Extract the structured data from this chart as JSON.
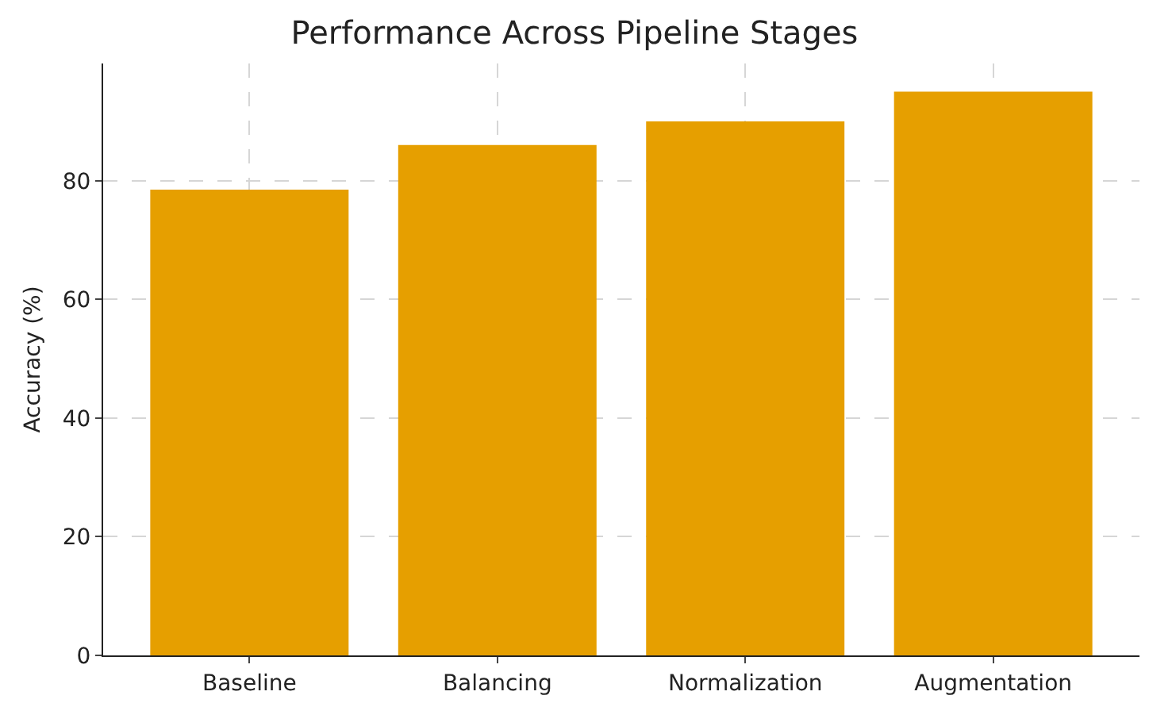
{
  "chart_data": {
    "type": "bar",
    "title": "Performance Across Pipeline Stages",
    "ylabel": "Accuracy (%)",
    "categories": [
      "Baseline",
      "Balancing",
      "Normalization",
      "Augmentation"
    ],
    "values": [
      78.5,
      86,
      90,
      95
    ],
    "color": "#e69f00",
    "ylim": [
      0,
      99.75
    ],
    "yticks": [
      0,
      20,
      40,
      60,
      80
    ],
    "grid": true
  }
}
